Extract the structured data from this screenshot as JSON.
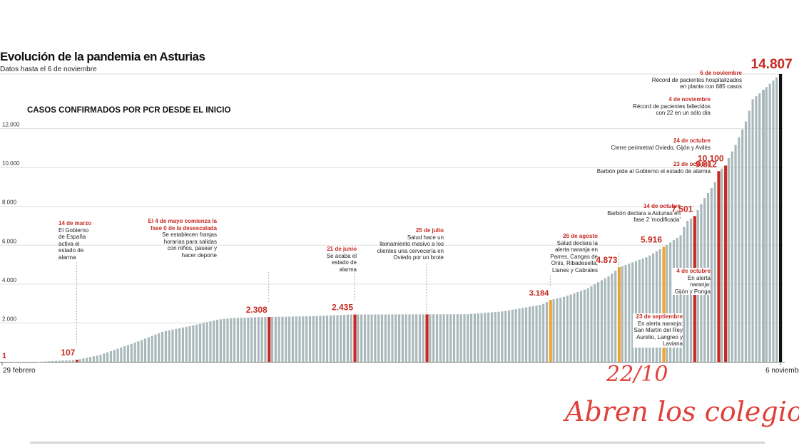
{
  "header": {
    "title": "Evolución de la pandemia en Asturias",
    "subtitle": "Datos hasta el 6 de noviembre",
    "section_title": "CASOS CONFIRMADOS POR PCR DESDE EL INICIO"
  },
  "axis": {
    "x_start_label": "29 febrero",
    "x_end_label": "6 noviembre"
  },
  "colors": {
    "bar": "#a9b9bb",
    "accent": "#c62a22",
    "orange": "#f0a52e",
    "final": "#111111",
    "grid": "#dddddd"
  },
  "chart_data": {
    "type": "bar",
    "title": "Evolución de la pandemia en Asturias",
    "subtitle": "Datos hasta el 6 de noviembre",
    "ylim": [
      0,
      14807
    ],
    "yticks": [
      2000,
      4000,
      6000,
      8000,
      10000,
      12000
    ],
    "ytick_labels": [
      "2.000",
      "4.000",
      "6.000",
      "8.000",
      "10.000",
      "12.000"
    ],
    "grid": true,
    "n_bars": 217,
    "anchors": [
      [
        0,
        1
      ],
      [
        14,
        107
      ],
      [
        22,
        350
      ],
      [
        35,
        1000
      ],
      [
        45,
        1560
      ],
      [
        55,
        1850
      ],
      [
        65,
        2180
      ],
      [
        70,
        2250
      ],
      [
        80,
        2300
      ],
      [
        100,
        2350
      ],
      [
        113,
        2435
      ],
      [
        130,
        2440
      ],
      [
        155,
        2450
      ],
      [
        168,
        2600
      ],
      [
        178,
        2850
      ],
      [
        182,
        2950
      ],
      [
        185,
        3184
      ],
      [
        190,
        3350
      ],
      [
        198,
        3750
      ],
      [
        206,
        4400
      ],
      [
        210,
        4873
      ],
      [
        220,
        5400
      ],
      [
        226,
        5916
      ],
      [
        232,
        6500
      ],
      [
        234,
        7200
      ],
      [
        237,
        7501
      ],
      [
        241,
        8500
      ],
      [
        244,
        9100
      ],
      [
        246,
        9812
      ],
      [
        248,
        10100
      ],
      [
        252,
        11200
      ],
      [
        256,
        12500
      ],
      [
        258,
        13500
      ],
      [
        262,
        14000
      ],
      [
        268,
        14807
      ]
    ],
    "highlighted": [
      {
        "date": "14 de marzo",
        "value": 107,
        "label": "107",
        "color": "red",
        "note": [
          "El Gobierno",
          "de España",
          "activa el",
          "estado de",
          "alarma"
        ]
      },
      {
        "date": "El 4 de mayo comienza la fase 0 de la desescalada",
        "value": 2308,
        "label": "2.308",
        "color": "red",
        "note": [
          "Se establecen franjas",
          "horarias para salidas",
          "con niños, pasear y",
          "hacer deporte"
        ]
      },
      {
        "date": "21 de junio",
        "value": 2435,
        "label": "2.435",
        "color": "red",
        "note": [
          "Se acaba el",
          "estado de",
          "alarma"
        ]
      },
      {
        "date": "25 de julio",
        "value": 2440,
        "label": "",
        "color": "red",
        "note": [
          "Salud hace un",
          "llamamiento masivo a los",
          "clientes una cervecería en",
          "Oviedo por un brote"
        ]
      },
      {
        "date": "26 de agosto",
        "value": 3184,
        "label": "3.184",
        "color": "orange",
        "note": [
          "Salud declara la",
          "alerta naranja en",
          "Parres, Cangas de",
          "Onís, Ribadesella,",
          "Llanes y Cabrales"
        ]
      },
      {
        "date": "23 de septiembre",
        "value": 4873,
        "label": "4.873",
        "color": "orange",
        "note": [
          "En alerta naranja:",
          "San Martín del Rey",
          "Aurelio, Langreo y",
          "Laviana"
        ]
      },
      {
        "date": "4 de octubre",
        "value": 5916,
        "label": "5.916",
        "color": "orange",
        "note": [
          "En alerta",
          "naranja:",
          "Gijón y Ponga"
        ]
      },
      {
        "date": "14 de octubre",
        "value": 7501,
        "label": "7.501",
        "color": "red",
        "note": [
          "Barbón declara a Asturias en",
          "fase 2 'modificada'"
        ]
      },
      {
        "date": "23 de octubre",
        "value": 9812,
        "label": "9.812",
        "color": "red",
        "note": [
          "Barbón pide al Gobierno el estado de alarma"
        ]
      },
      {
        "date": "24 de octubre",
        "value": 10100,
        "label": "10.100",
        "color": "red",
        "note": [
          "Cierre perimetral Oviedo, Gijón y Avilés"
        ]
      },
      {
        "date": "4 de noviembre",
        "value": 14000,
        "label": "",
        "color": "bar",
        "note": [
          "Récord de pacientes fallecidos",
          "con 22 en un sólo día"
        ]
      },
      {
        "date": "6 de noviembre",
        "value": 14807,
        "label": "14.807",
        "color": "black",
        "note": [
          "Récord de pacientes hospitalizados",
          "en planta con 685 casos"
        ]
      }
    ],
    "first_label": "1"
  },
  "handwriting": {
    "date": "22/10",
    "text": "Abren los colegios"
  }
}
